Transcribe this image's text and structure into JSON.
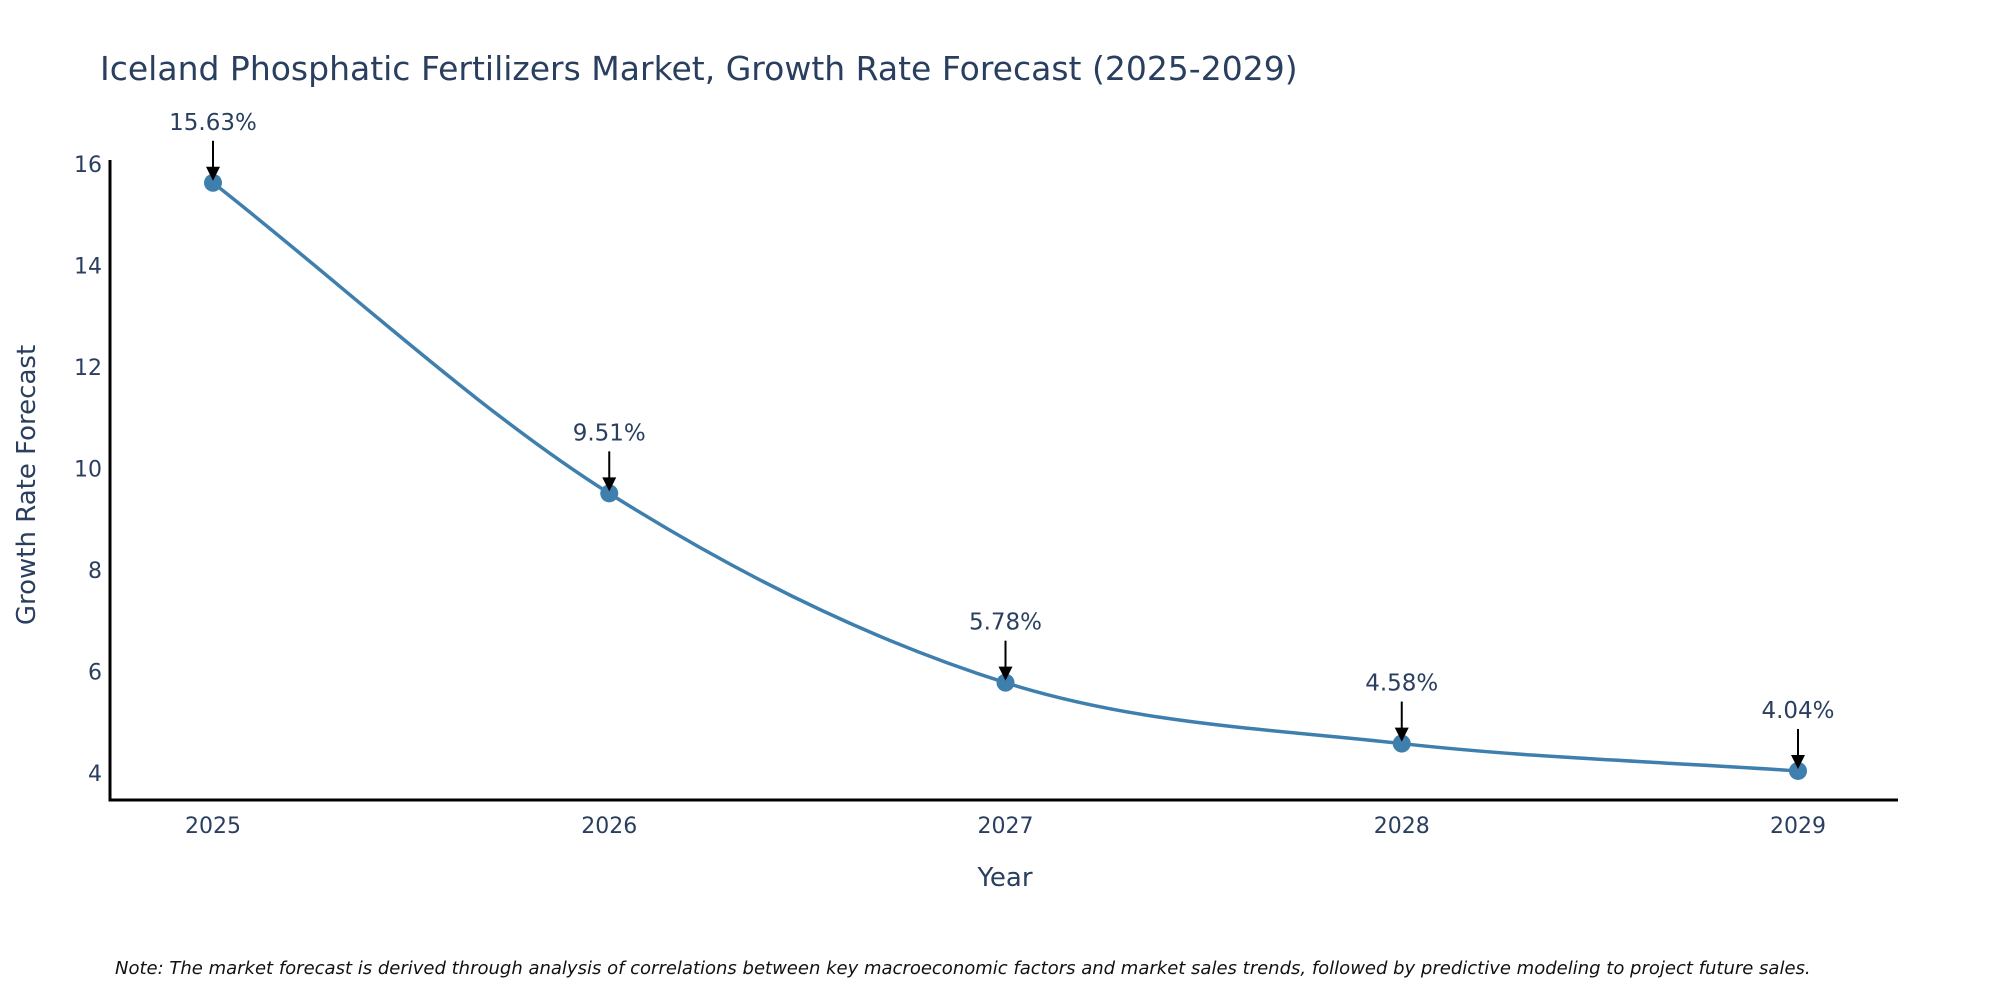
{
  "chart_data": {
    "type": "line",
    "title": "Iceland Phosphatic Fertilizers Market, Growth Rate Forecast (2025-2029)",
    "xlabel": "Year",
    "ylabel": "Growth Rate Forecast",
    "categories": [
      "2025",
      "2026",
      "2027",
      "2028",
      "2029"
    ],
    "series": [
      {
        "name": "Growth Rate Forecast",
        "values": [
          15.63,
          9.51,
          5.78,
          4.58,
          4.04
        ],
        "labels": [
          "15.63%",
          "9.51%",
          "5.78%",
          "4.58%",
          "4.04%"
        ]
      }
    ],
    "y_ticks": [
      4,
      6,
      8,
      10,
      12,
      14,
      16
    ],
    "ylim": [
      3.5,
      16.1
    ],
    "grid": false,
    "line_color": "#3e7fae",
    "marker_color": "#3e7fae",
    "note": "Note: The market forecast is derived through analysis of correlations between key macroeconomic factors and market sales trends, followed by predictive modeling to project future sales."
  }
}
